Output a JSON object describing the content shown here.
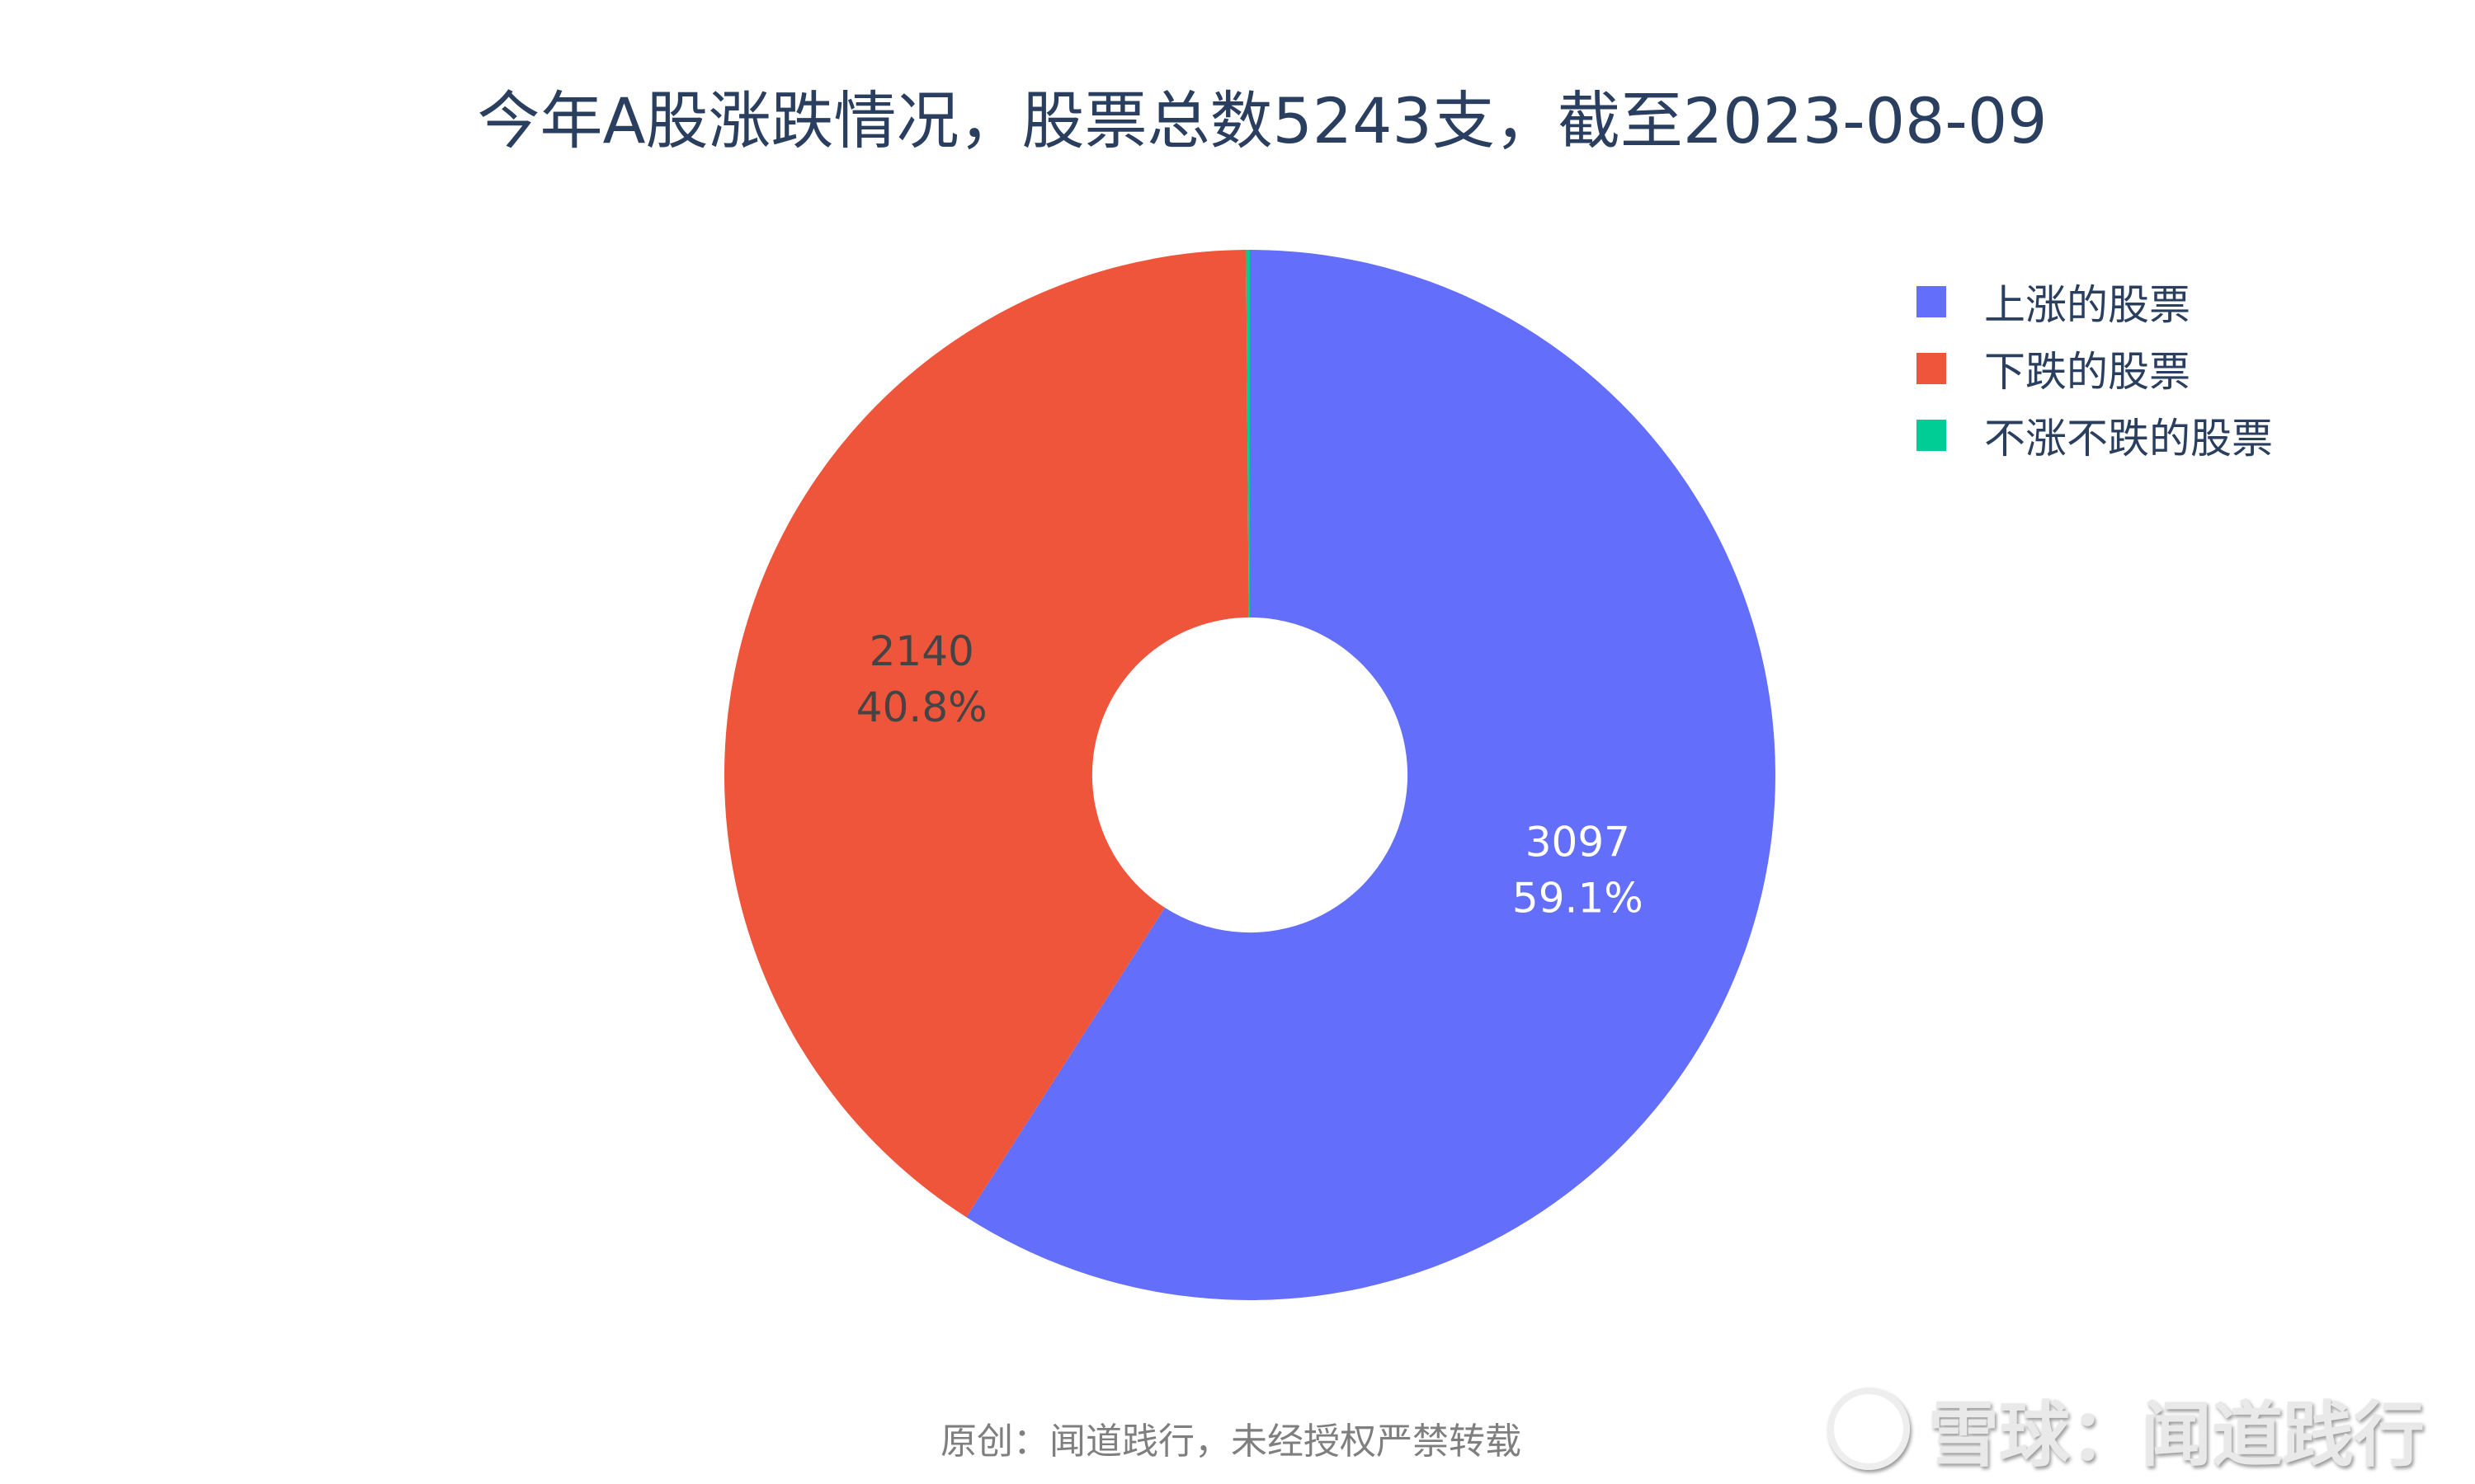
{
  "chart_data": {
    "type": "pie",
    "hole": 0.3,
    "direction": "clockwise",
    "rotation_start": "top",
    "title": "今年A股涨跌情况，股票总数5243支，截至2023-08-09",
    "labels": [
      "上涨的股票",
      "下跌的股票",
      "不涨不跌的股票"
    ],
    "values": [
      3097,
      2140,
      6
    ],
    "percent_labels": [
      "59.1%",
      "40.8%",
      ""
    ],
    "colors": [
      "#636efa",
      "#ef553b",
      "#00cc96"
    ],
    "legend_position": "top-right"
  },
  "footer": "原创：闻道践行，未经授权严禁转载",
  "watermark": "雪球：闻道践行"
}
